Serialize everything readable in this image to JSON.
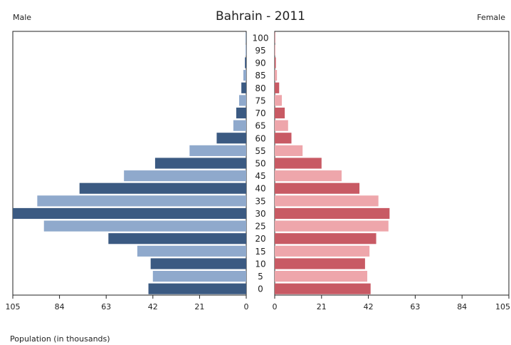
{
  "chart_data": {
    "type": "bar",
    "subtype": "population-pyramid",
    "title": "Bahrain - 2011",
    "left_label": "Male",
    "right_label": "Female",
    "xlabel": "Population (in thousands)",
    "xlim": [
      0,
      105
    ],
    "xticks": [
      "105",
      "84",
      "63",
      "42",
      "21",
      "0",
      "0",
      "21",
      "42",
      "63",
      "84",
      "105"
    ],
    "categories": [
      "100",
      "95",
      "90",
      "85",
      "80",
      "75",
      "70",
      "65",
      "60",
      "55",
      "50",
      "45",
      "40",
      "35",
      "30",
      "25",
      "20",
      "15",
      "10",
      "5",
      "0"
    ],
    "series": [
      {
        "name": "Male",
        "values": [
          0.2,
          0.3,
          0.6,
          1.3,
          2.2,
          3.2,
          4.5,
          5.8,
          13.3,
          25.5,
          41.0,
          55.0,
          75.0,
          94.0,
          105.0,
          91.0,
          62.0,
          49.0,
          43.0,
          42.0,
          44.0
        ]
      },
      {
        "name": "Female",
        "values": [
          0.2,
          0.3,
          0.5,
          1.0,
          2.0,
          3.2,
          4.5,
          6.0,
          7.5,
          12.5,
          21.0,
          30.0,
          38.0,
          46.5,
          51.5,
          51.0,
          45.5,
          42.5,
          40.5,
          41.5,
          43.0
        ]
      }
    ],
    "colors": {
      "male_dark": "#3b5a82",
      "male_light": "#8fa9cc",
      "female_dark": "#c85a64",
      "female_light": "#eea6ab"
    },
    "grid": false
  }
}
